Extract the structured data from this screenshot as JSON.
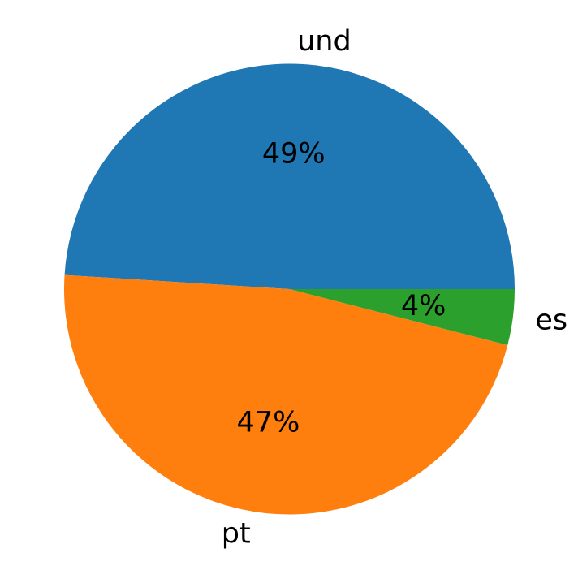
{
  "chart_data": {
    "type": "pie",
    "title": "",
    "start_angle_deg": 0,
    "direction": "counterclockwise",
    "slices": [
      {
        "label": "und",
        "value": 49,
        "pct_label": "49%",
        "color": "#1f77b4"
      },
      {
        "label": "pt",
        "value": 47,
        "pct_label": "47%",
        "color": "#ff7f0e"
      },
      {
        "label": "es",
        "value": 4,
        "pct_label": "4%",
        "color": "#2ca02c"
      }
    ]
  }
}
